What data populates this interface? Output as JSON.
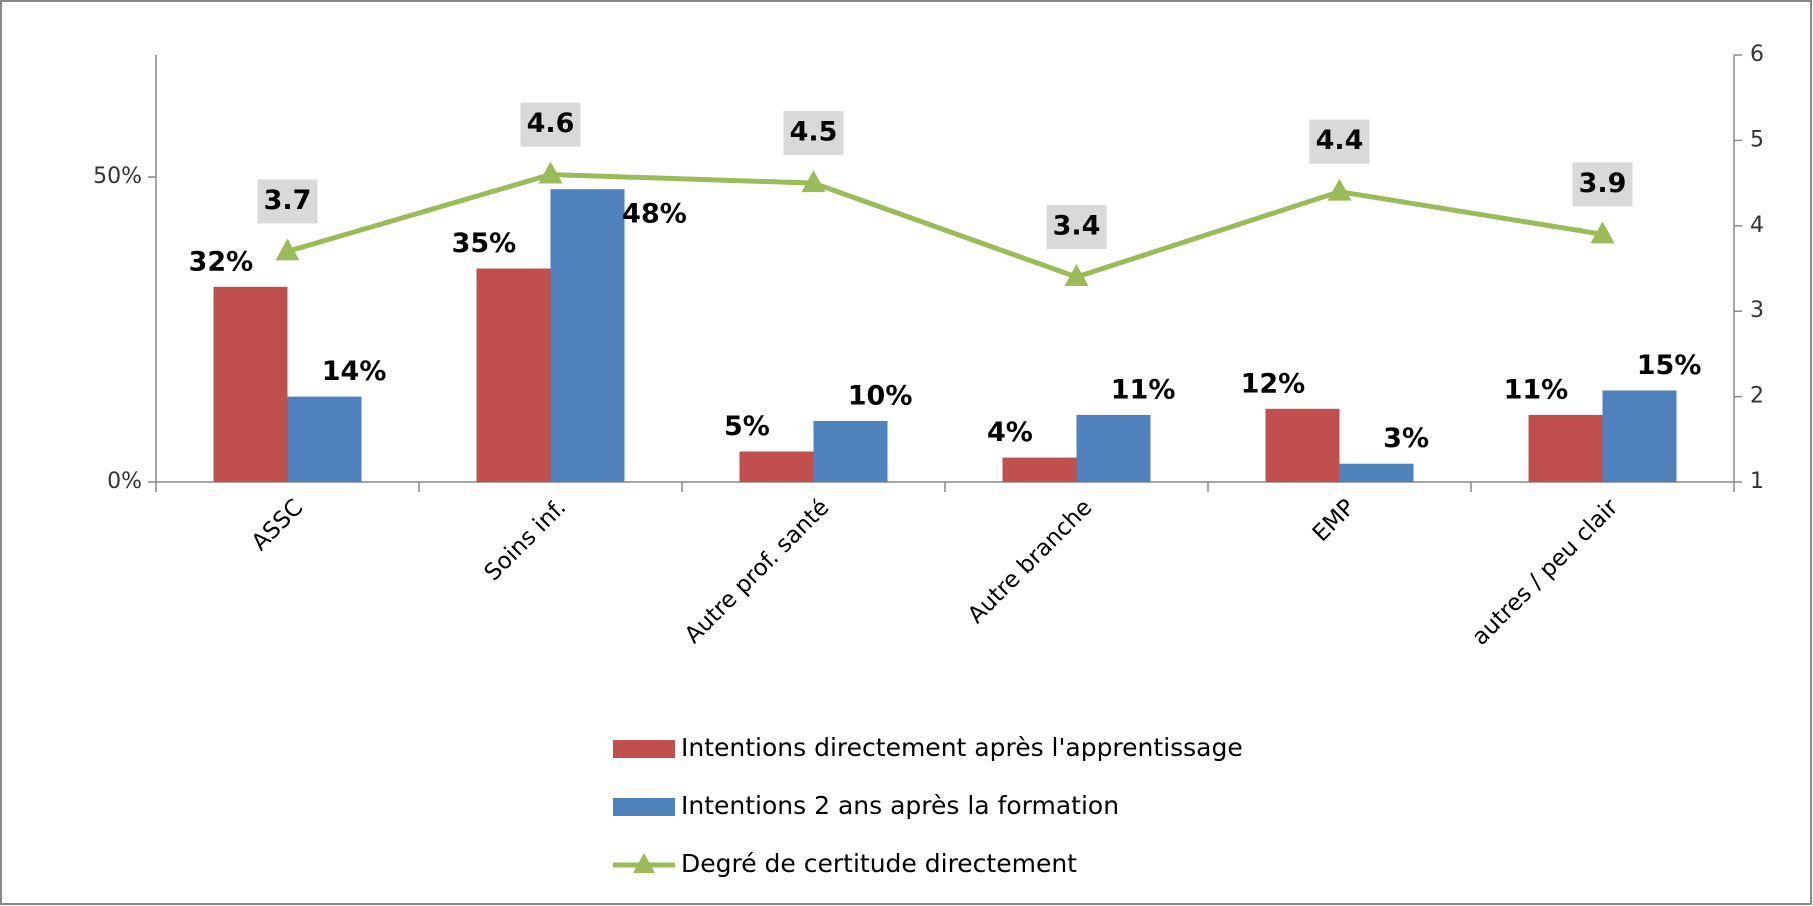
{
  "chart_data": {
    "type": "bar_line",
    "categories": [
      "ASSC",
      "Soins inf.",
      "Autre prof. santé",
      "Autre branche",
      "EMP",
      "autres / peu clair"
    ],
    "series": [
      {
        "name": "Intentions directement après l'apprentissage",
        "type": "bar",
        "color": "#c0504d",
        "values": [
          32,
          35,
          5,
          4,
          12,
          11
        ],
        "value_labels": [
          "32%",
          "35%",
          "5%",
          "4%",
          "12%",
          "11%"
        ]
      },
      {
        "name": "Intentions 2 ans après la formation",
        "type": "bar",
        "color": "#4f81bd",
        "values": [
          14,
          48,
          10,
          11,
          3,
          15
        ],
        "value_labels": [
          "14%",
          "48%",
          "10%",
          "11%",
          "3%",
          "15%"
        ]
      },
      {
        "name": "Degré de certitude directement",
        "type": "line",
        "axis": "y2",
        "color": "#9bbb59",
        "values": [
          3.7,
          4.6,
          4.5,
          3.4,
          4.4,
          3.9
        ]
      }
    ],
    "ylim": [
      0,
      70
    ],
    "yticks": [
      {
        "value": 0,
        "label": "0%"
      },
      {
        "value": 50,
        "label": "50%"
      }
    ],
    "y2lim": [
      1,
      6
    ],
    "y2ticks": [
      1,
      2,
      3,
      4,
      5,
      6
    ],
    "legend": "bottom"
  }
}
